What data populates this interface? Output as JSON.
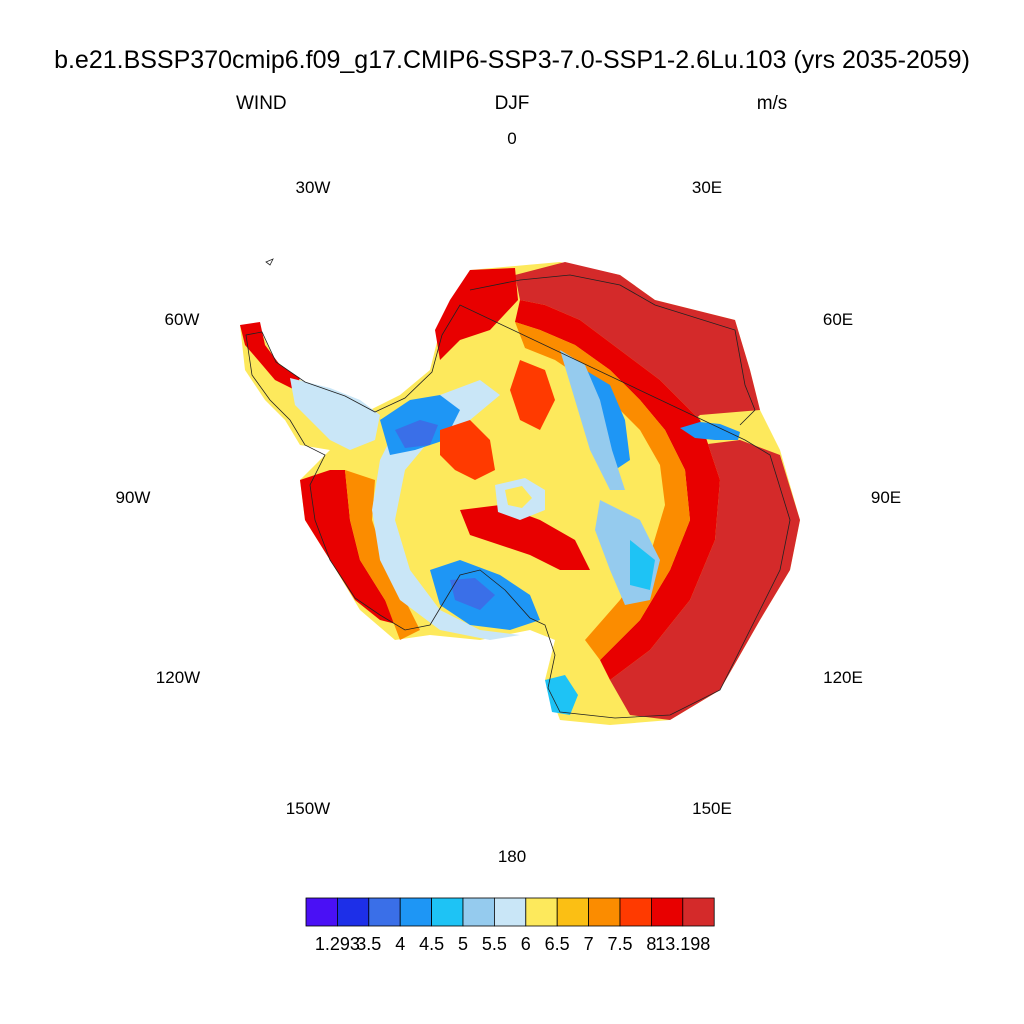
{
  "header": {
    "title": "b.e21.BSSP370cmip6.f09_g17.CMIP6-SSP3-7.0-SSP1-2.6Lu.103 (yrs 2035-2059)",
    "left_label": "WIND",
    "center_label": "DJF",
    "right_label": "m/s"
  },
  "map": {
    "projection": "south-polar-stereographic",
    "region": "Antarctica",
    "longitude_labels": [
      "0",
      "30E",
      "60E",
      "90E",
      "120E",
      "150E",
      "180",
      "150W",
      "120W",
      "90W",
      "60W",
      "30W"
    ]
  },
  "colorbar": {
    "colors": [
      "#4a10f5",
      "#1d2fe8",
      "#3a6fe8",
      "#1e96f5",
      "#1ec3f5",
      "#95cbee",
      "#c9e6f7",
      "#fde95c",
      "#fbbf14",
      "#fb8c00",
      "#ff3a00",
      "#e80000",
      "#d42a2a"
    ],
    "labels": [
      "1.293",
      "3.5",
      "4",
      "4.5",
      "5",
      "5.5",
      "6",
      "6.5",
      "7",
      "7.5",
      "8",
      "13.198"
    ]
  }
}
